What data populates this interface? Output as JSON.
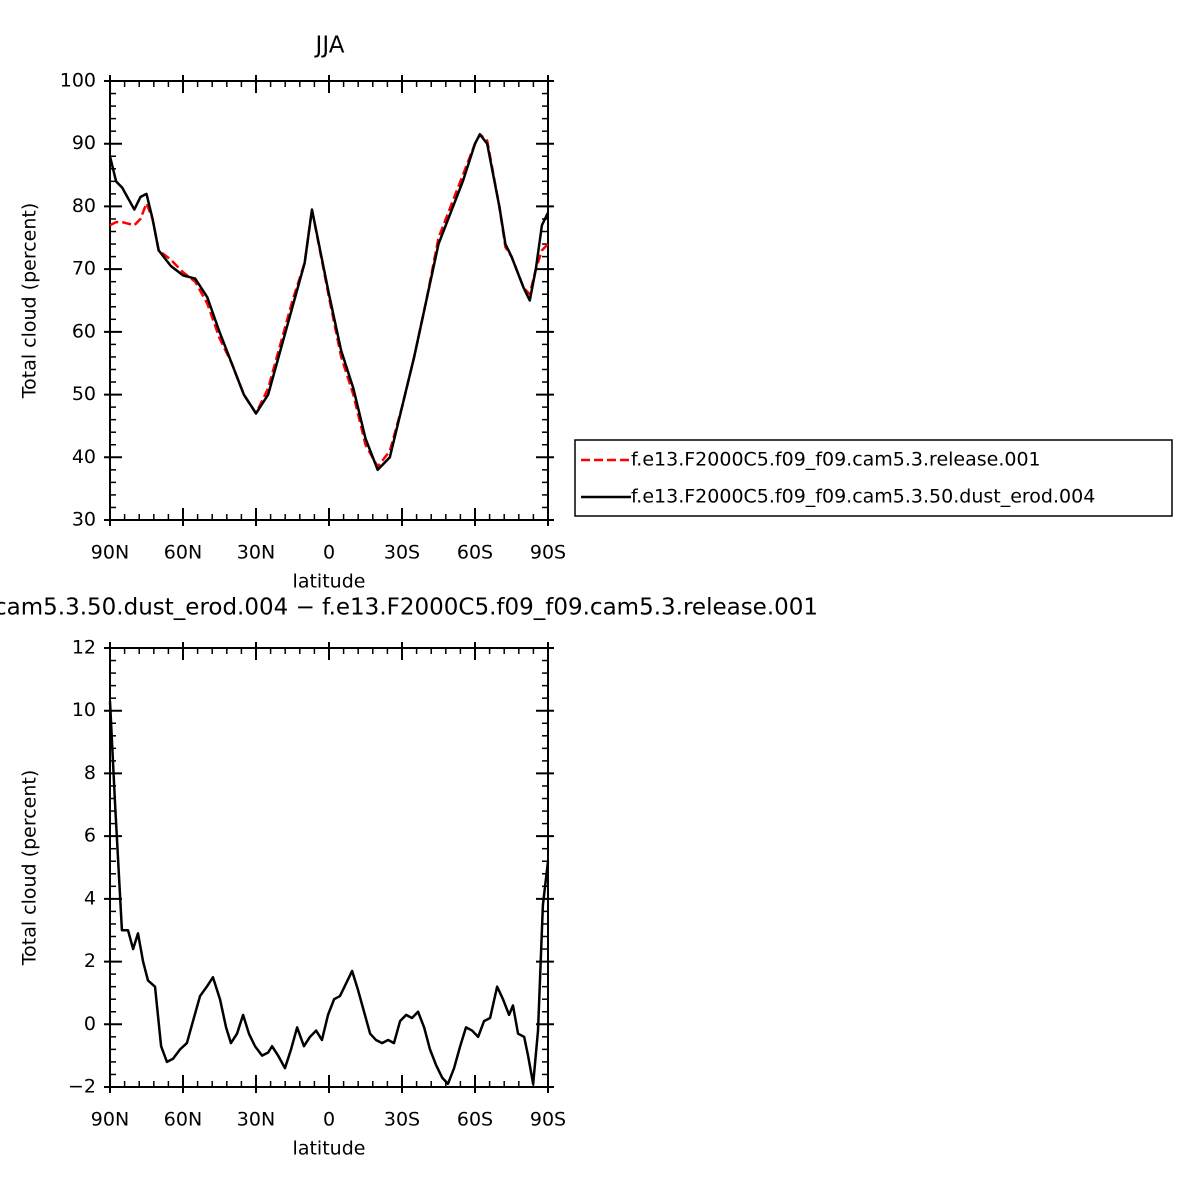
{
  "chart_data": [
    {
      "type": "line",
      "title": "JJA",
      "xlabel": "latitude",
      "ylabel": "Total cloud (percent)",
      "xlim": [
        90,
        -90
      ],
      "xticks": [
        {
          "value": 90,
          "label": "90N"
        },
        {
          "value": 60,
          "label": "60N"
        },
        {
          "value": 30,
          "label": "30N"
        },
        0,
        {
          "value": -30,
          "label": "30S"
        },
        {
          "value": -60,
          "label": "60S"
        },
        {
          "value": -90,
          "label": "90S"
        }
      ],
      "ylim": [
        30,
        100
      ],
      "yticks": [
        30,
        40,
        50,
        60,
        70,
        80,
        90,
        100
      ],
      "legend": "right",
      "x": [
        90,
        87.5,
        85,
        80,
        77.5,
        75,
        72.5,
        70,
        65,
        60,
        55,
        50,
        45,
        40,
        35,
        30,
        25,
        20,
        15,
        10,
        7,
        0,
        -5,
        -10,
        -15,
        -20,
        -25,
        -30,
        -35,
        -40,
        -45,
        -50,
        -55,
        -60,
        -62,
        -65,
        -70,
        -72.5,
        -75,
        -80,
        -82.5,
        -85,
        -87.5,
        -90
      ],
      "series": [
        {
          "name": "f.e13.F2000C5.f09_f09.cam5.3.release.001",
          "color": "#ff0000",
          "line_style": "dashed",
          "values": [
            77,
            77.5,
            77.5,
            77,
            78,
            80.5,
            78,
            73,
            71.5,
            69.5,
            68,
            64.5,
            59,
            55,
            50,
            47,
            51,
            58,
            65,
            71,
            79.5,
            65.5,
            56,
            50,
            42,
            38.5,
            41,
            48,
            56,
            65,
            75,
            80,
            85,
            90,
            91.5,
            90.5,
            80,
            73.5,
            72,
            67,
            66,
            70,
            73,
            74
          ]
        },
        {
          "name": "f.e13.F2000C5.f09_f09.cam5.3.50.dust_erod.004",
          "color": "#000000",
          "line_style": "solid",
          "values": [
            88,
            84,
            83,
            79.5,
            81.5,
            82,
            78,
            73,
            70.5,
            69,
            68.5,
            65.5,
            60,
            55,
            50,
            47,
            50,
            57,
            64,
            71,
            79.5,
            66,
            57,
            51,
            43,
            38,
            40,
            48,
            56,
            65,
            74,
            79,
            84,
            90,
            91.5,
            90,
            80,
            74,
            72,
            67,
            65,
            70,
            77,
            79
          ]
        }
      ]
    },
    {
      "type": "line",
      "title": "cam5.3.50.dust_erod.004 − f.e13.F2000C5.f09_f09.cam5.3.release.001",
      "xlabel": "latitude",
      "ylabel": "Total cloud (percent)",
      "xlim": [
        90,
        -90
      ],
      "xticks": [
        {
          "value": 90,
          "label": "90N"
        },
        {
          "value": 60,
          "label": "60N"
        },
        {
          "value": 30,
          "label": "30N"
        },
        0,
        {
          "value": -30,
          "label": "30S"
        },
        {
          "value": -60,
          "label": "60S"
        },
        {
          "value": -90,
          "label": "90S"
        }
      ],
      "ylim": [
        -2,
        12
      ],
      "yticks": [
        {
          "value": -2,
          "label": "−2"
        },
        0,
        2,
        4,
        6,
        8,
        10,
        12
      ],
      "x": [
        90,
        87.9,
        85.1,
        82.6,
        80.5,
        78.5,
        76.4,
        74.4,
        71.5,
        69,
        66.6,
        64.1,
        61.2,
        58.4,
        55.9,
        53,
        50.2,
        47.7,
        44.8,
        42.3,
        40.3,
        37.8,
        35.3,
        32.9,
        30.4,
        27.5,
        25,
        23.4,
        20.9,
        18.1,
        15.6,
        13.1,
        10.3,
        7.8,
        5.3,
        2.9,
        0.4,
        -2.1,
        -4.5,
        -7,
        -9.5,
        -11.9,
        -14.4,
        -16.9,
        -19.3,
        -21.8,
        -24.3,
        -26.7,
        -29.2,
        -31.7,
        -34.1,
        -36.6,
        -39.1,
        -41.5,
        -44,
        -46.5,
        -48.9,
        -51.4,
        -53.9,
        -56.3,
        -58.8,
        -61.3,
        -63.7,
        -66.2,
        -69.1,
        -71.5,
        -74,
        -75.6,
        -77.7,
        -80.2,
        -81.8,
        -83.9,
        -85.9,
        -87.9,
        -90
      ],
      "series": [
        {
          "color": "#000000",
          "line_style": "solid",
          "values": [
            10.3,
            7,
            3,
            3,
            2.4,
            2.9,
            2,
            1.4,
            1.2,
            -0.7,
            -1.2,
            -1.1,
            -0.8,
            -0.6,
            0.1,
            0.9,
            1.2,
            1.5,
            0.8,
            -0.1,
            -0.6,
            -0.3,
            0.3,
            -0.3,
            -0.7,
            -1,
            -0.9,
            -0.7,
            -1,
            -1.4,
            -0.8,
            -0.1,
            -0.7,
            -0.4,
            -0.2,
            -0.5,
            0.3,
            0.8,
            0.9,
            1.3,
            1.7,
            1.1,
            0.4,
            -0.3,
            -0.5,
            -0.6,
            -0.5,
            -0.6,
            0.1,
            0.3,
            0.2,
            0.4,
            -0.1,
            -0.8,
            -1.3,
            -1.7,
            -1.9,
            -1.4,
            -0.7,
            -0.1,
            -0.2,
            -0.4,
            0.1,
            0.2,
            1.2,
            0.8,
            0.3,
            0.6,
            -0.3,
            -0.4,
            -1,
            -1.9,
            -0.2,
            3.8,
            5.2
          ]
        }
      ]
    }
  ]
}
